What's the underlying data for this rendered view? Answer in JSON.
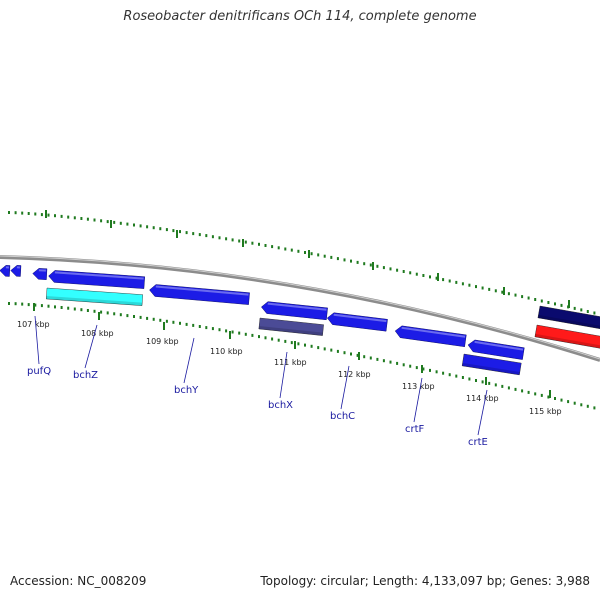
{
  "header": {
    "title": "Roseobacter denitrificans OCh 114, complete genome"
  },
  "footer": {
    "accession": "Accession: NC_008209",
    "summary": "Topology: circular; Length: 4,133,097 bp; Genes: 3,988"
  },
  "colors": {
    "backbone": "#8c8c8c",
    "tick": "#1f7a1f",
    "gene_blue": "#1c1ce6",
    "gene_cyan": "#33ffff",
    "gene_slate": "#4b4b96",
    "gene_navy": "#0a0a6e",
    "gene_red": "#ff1a1a",
    "label": "#1a1aa0"
  },
  "map": {
    "kbp_labels": [
      "107 kbp",
      "108 kbp",
      "109 kbp",
      "110 kbp",
      "111 kbp",
      "112 kbp",
      "113 kbp",
      "114 kbp",
      "115 kbp"
    ],
    "gene_labels": [
      "pufQ",
      "bchZ",
      "bchY",
      "bchX",
      "bchC",
      "crtF",
      "crtE"
    ]
  }
}
